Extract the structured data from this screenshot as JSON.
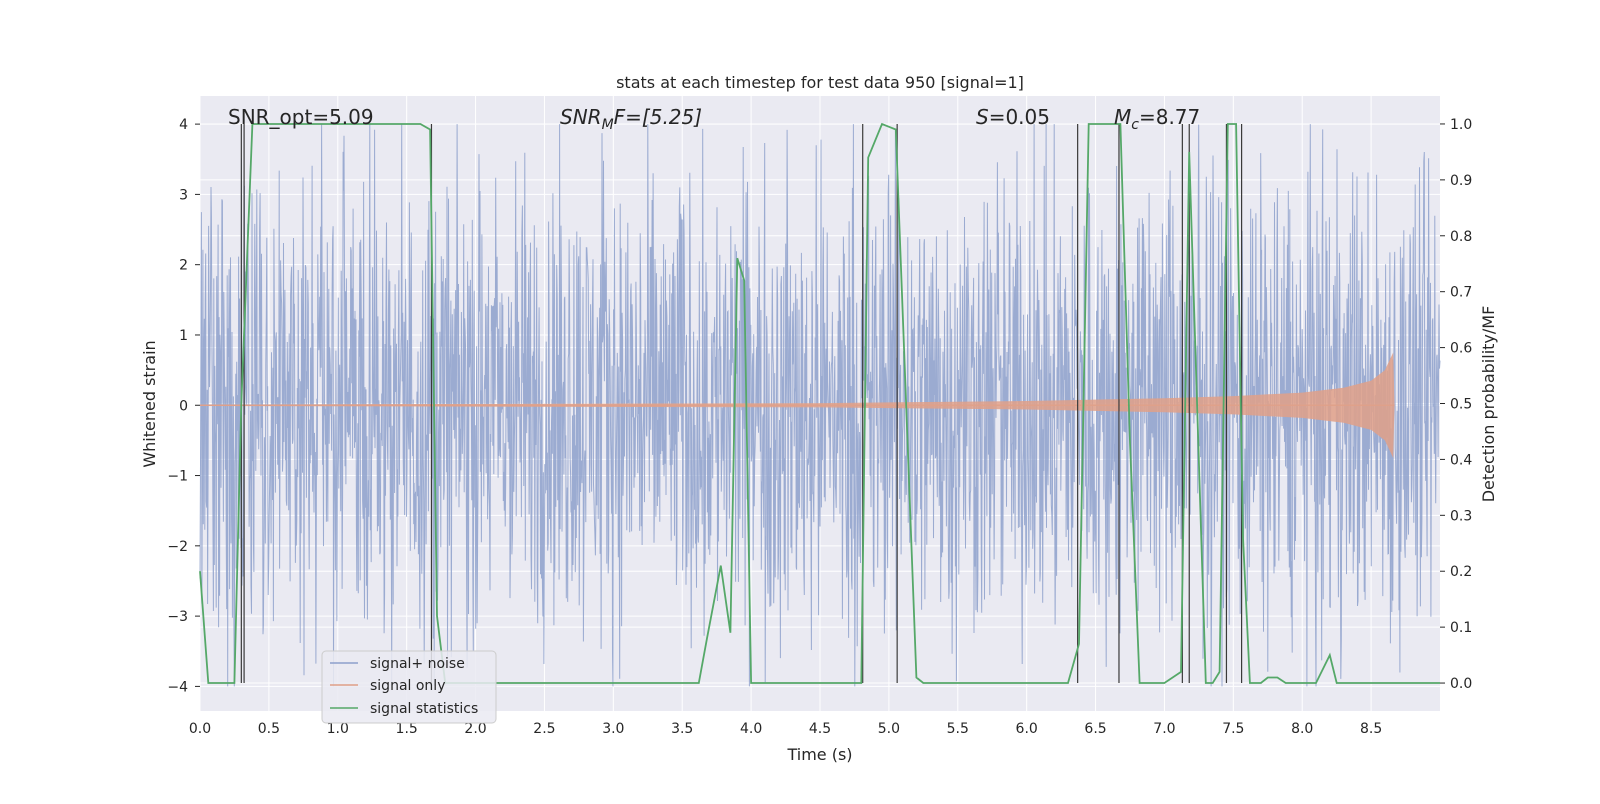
{
  "chart_data": {
    "type": "line",
    "title": "stats at each timestep for test data 950 [signal=1]",
    "xlabel": "Time (s)",
    "ylabel": "Whitened strain",
    "ylabel_right": "Detection probability/MF",
    "xlim": [
      0.0,
      9.0
    ],
    "ylim": [
      -4.35,
      4.4
    ],
    "ylim_right": [
      -0.05,
      1.05
    ],
    "x_ticks": [
      0.0,
      0.5,
      1.0,
      1.5,
      2.0,
      2.5,
      3.0,
      3.5,
      4.0,
      4.5,
      5.0,
      5.5,
      6.0,
      6.5,
      7.0,
      7.5,
      8.0,
      8.5
    ],
    "x_tick_labels": [
      "0.0",
      "0.5",
      "1.0",
      "1.5",
      "2.0",
      "2.5",
      "3.0",
      "3.5",
      "4.0",
      "4.5",
      "5.0",
      "5.5",
      "6.0",
      "6.5",
      "7.0",
      "7.5",
      "8.0",
      "8.5"
    ],
    "y_ticks": [
      -4,
      -3,
      -2,
      -1,
      0,
      1,
      2,
      3,
      4
    ],
    "y_tick_labels": [
      "−4",
      "−3",
      "−2",
      "−1",
      "0",
      "1",
      "2",
      "3",
      "4"
    ],
    "y_ticks_right": [
      0.0,
      0.1,
      0.2,
      0.3,
      0.4,
      0.5,
      0.6,
      0.7,
      0.8,
      0.9,
      1.0
    ],
    "y_tick_labels_right": [
      "0.0",
      "0.1",
      "0.2",
      "0.3",
      "0.4",
      "0.5",
      "0.6",
      "0.7",
      "0.8",
      "0.9",
      "1.0"
    ],
    "grid": true,
    "legend_placement": "lower-left",
    "legend": [
      "signal+ noise",
      "signal only",
      "signal statistics"
    ],
    "annotations": {
      "snr_opt": "SNR_opt=5.09",
      "snr_mf_prefix": "SNR",
      "snr_mf_sub": "M",
      "snr_mf_suffix": "F=[5.25]",
      "s_var": "S",
      "s_val": "=0.05",
      "mc_var": "M",
      "mc_sub": "c",
      "mc_val": "=8.77"
    },
    "series": [
      {
        "name": "signal+ noise",
        "color": "#8da0cb",
        "description_stats": {
          "x_range": [
            0.0,
            9.0
          ],
          "typical_amplitude": 2.2,
          "max_spike": 4.0,
          "min_spike": -4.0
        }
      },
      {
        "name": "signal only",
        "color": "#e0a088",
        "envelope": {
          "x": [
            0.0,
            4.5,
            6.0,
            7.0,
            7.5,
            8.0,
            8.3,
            8.5,
            8.6,
            8.66,
            8.67
          ],
          "amp": [
            0.01,
            0.03,
            0.06,
            0.1,
            0.13,
            0.18,
            0.25,
            0.35,
            0.5,
            0.75,
            0.0
          ]
        }
      },
      {
        "name": "signal statistics",
        "color": "#55a868",
        "x": [
          0.0,
          0.06,
          0.2,
          0.25,
          0.3,
          0.38,
          0.42,
          0.5,
          1.0,
          1.6,
          1.67,
          1.72,
          1.78,
          2.0,
          3.0,
          3.5,
          3.62,
          3.68,
          3.78,
          3.85,
          3.9,
          3.95,
          4.0,
          4.5,
          4.8,
          4.85,
          4.95,
          5.05,
          5.2,
          5.25,
          5.5,
          6.0,
          6.3,
          6.38,
          6.45,
          6.5,
          6.68,
          6.75,
          6.82,
          7.0,
          7.12,
          7.18,
          7.3,
          7.35,
          7.4,
          7.46,
          7.52,
          7.57,
          7.62,
          7.7,
          7.75,
          7.82,
          7.88,
          7.95,
          8.1,
          8.2,
          8.25,
          8.3,
          8.5,
          9.0
        ],
        "y": [
          0.2,
          0.0,
          0.0,
          0.0,
          0.5,
          1.0,
          1.0,
          1.0,
          1.0,
          1.0,
          0.99,
          0.12,
          0.0,
          0.0,
          0.0,
          0.0,
          0.0,
          0.08,
          0.21,
          0.09,
          0.76,
          0.72,
          0.0,
          0.0,
          0.0,
          0.94,
          1.0,
          0.99,
          0.01,
          0.0,
          0.0,
          0.0,
          0.0,
          0.07,
          1.0,
          1.0,
          1.0,
          0.43,
          0.0,
          0.0,
          0.02,
          0.95,
          0.0,
          0.0,
          0.02,
          1.0,
          1.0,
          0.26,
          0.0,
          0.0,
          0.01,
          0.01,
          0.0,
          0.0,
          0.0,
          0.05,
          0.0,
          0.0,
          0.0,
          0.0
        ]
      }
    ],
    "vertical_lines_x": [
      0.3,
      0.32,
      1.68,
      4.81,
      5.06,
      6.37,
      6.67,
      7.13,
      7.18,
      7.45,
      7.56
    ]
  }
}
